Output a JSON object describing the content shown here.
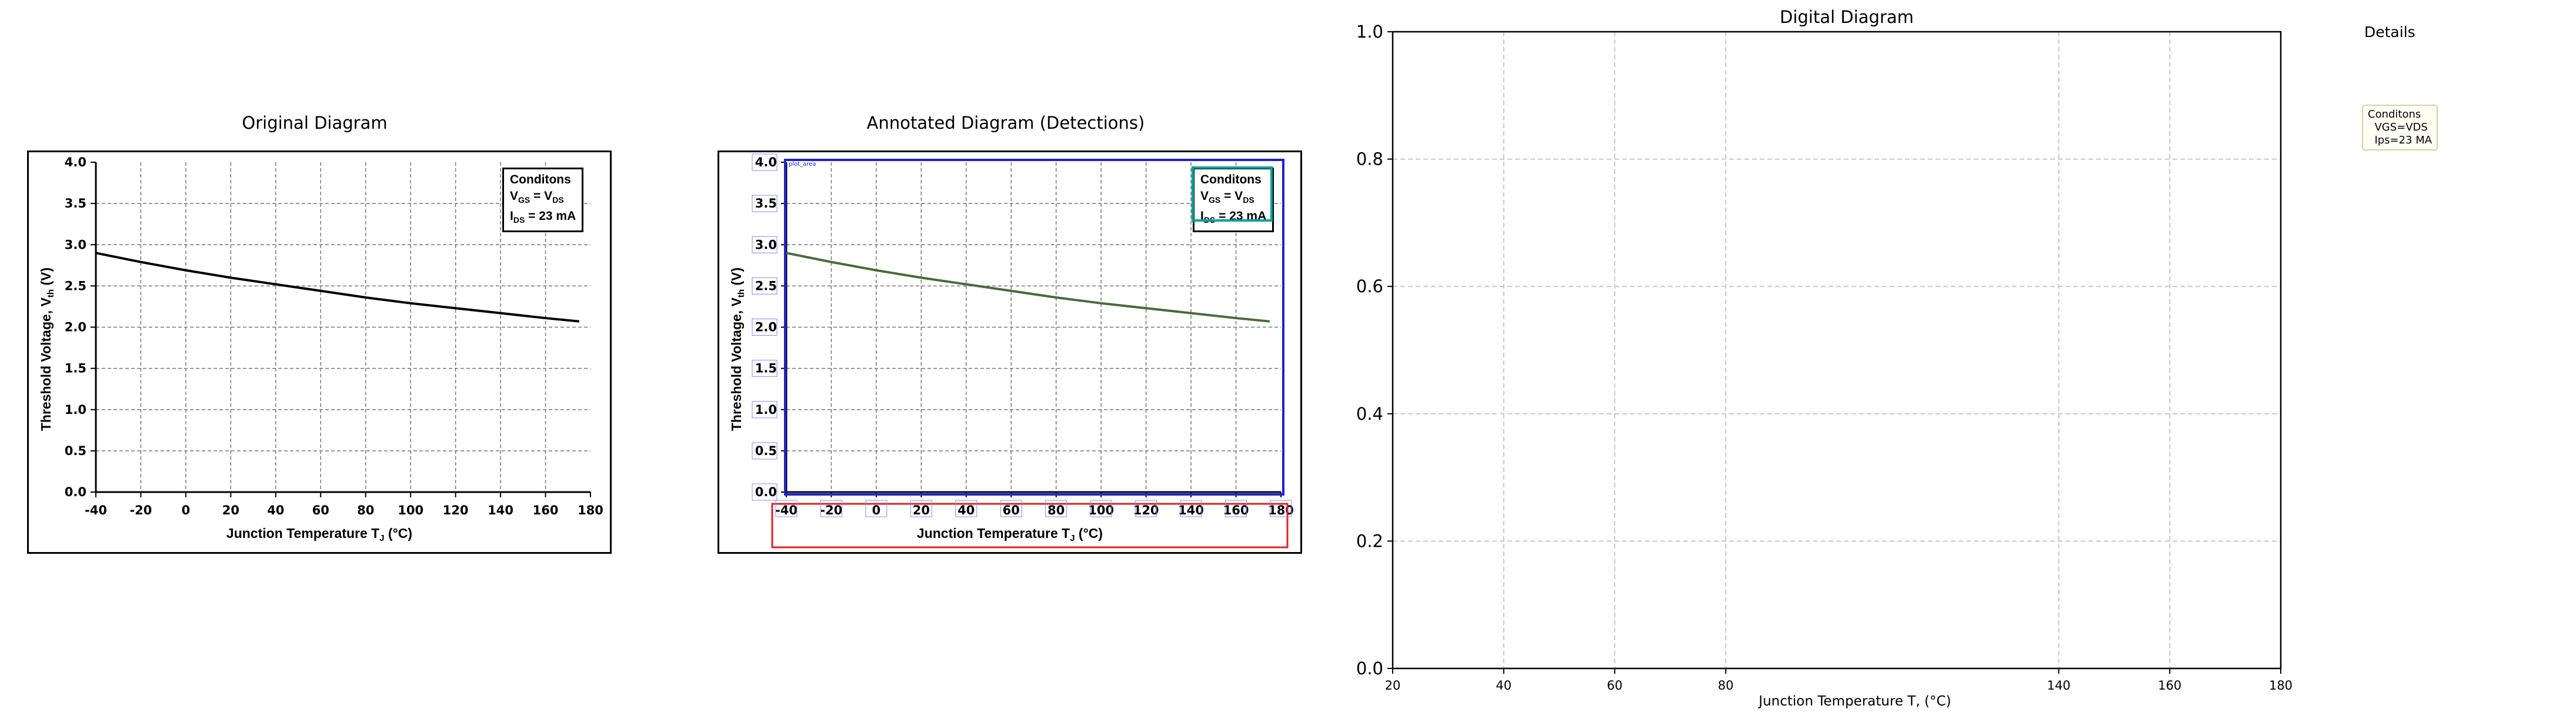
{
  "panels": {
    "original_title": "Original Diagram",
    "annotated_title": "Annotated Diagram (Detections)",
    "digital_title": "Digital Diagram",
    "details_title": "Details"
  },
  "source_chart": {
    "ylabel": "Threshold Voltage, V",
    "ylabel_sub": "th",
    "ylabel_unit": " (V)",
    "xlabel": "Junction Temperature T",
    "xlabel_sub": "J",
    "xlabel_unit": " (°C)",
    "x_ticks": [
      "-40",
      "-20",
      "0",
      "20",
      "40",
      "60",
      "80",
      "100",
      "120",
      "140",
      "160",
      "180"
    ],
    "y_ticks": [
      "0.0",
      "0.5",
      "1.0",
      "1.5",
      "2.0",
      "2.5",
      "3.0",
      "3.5",
      "4.0"
    ],
    "conditions": {
      "title": "Conditons",
      "line1_main": "V",
      "line1_sub": "GS",
      "line1_mid": " = V",
      "line1_sub2": "DS",
      "line2_main": "I",
      "line2_sub": "DS",
      "line2_rest": " = 23 mA"
    }
  },
  "detections": {
    "box_color": "#2222cc",
    "legend_box_color": "#00a0a0",
    "xlabel_box_color": "#dd2222",
    "curve_color": "#4a6a3a",
    "small_label": "plot_area"
  },
  "digital": {
    "x_ticks": [
      "20",
      "40",
      "60",
      "80",
      "140",
      "160",
      "180"
    ],
    "y_ticks": [
      "0.0",
      "0.2",
      "0.4",
      "0.6",
      "0.8",
      "1.0"
    ],
    "xlabel": "Junction Temperature T, (°C)",
    "legend": "Conditons\n  VGS=VDS\n  Ips=23 MA"
  },
  "chart_data": {
    "type": "line",
    "title": "",
    "xlabel": "Junction Temperature TJ (°C)",
    "ylabel": "Threshold Voltage, Vth (V)",
    "xlim": [
      -40,
      180
    ],
    "ylim": [
      0,
      4
    ],
    "grid": true,
    "legend": "top-right",
    "annotations": [
      "Conditons",
      "VGS = VDS",
      "IDS = 23 mA"
    ],
    "series": [
      {
        "x": [
          -40,
          -20,
          0,
          20,
          40,
          60,
          80,
          100,
          120,
          140,
          160,
          175
        ],
        "values": [
          2.9,
          2.79,
          2.69,
          2.6,
          2.52,
          2.44,
          2.36,
          2.29,
          2.23,
          2.17,
          2.11,
          2.07
        ]
      }
    ]
  }
}
